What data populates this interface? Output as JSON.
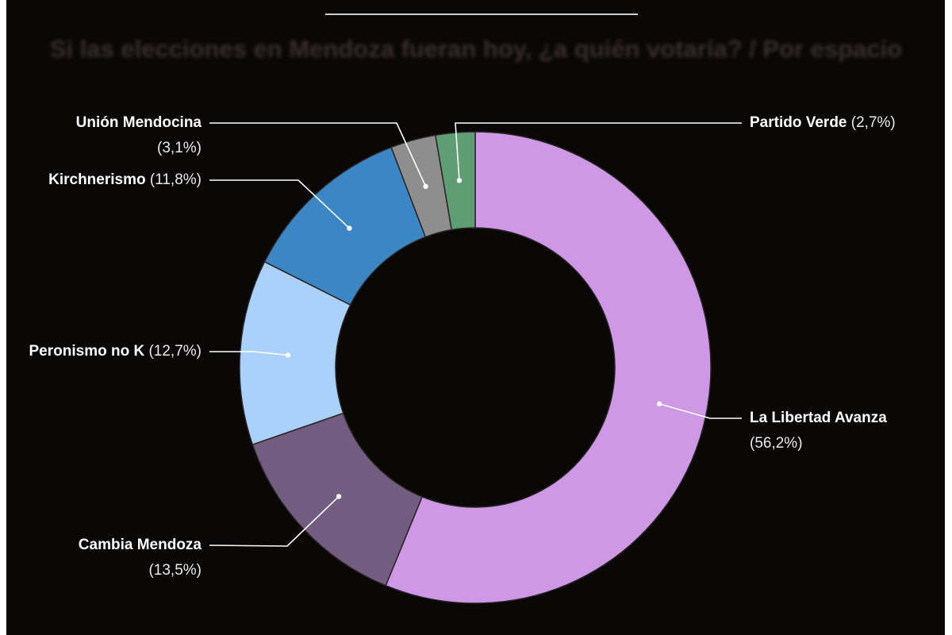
{
  "chart_data": {
    "type": "pie",
    "variant": "donut",
    "title": "Si las elecciones en Mendoza fueran hoy, ¿a quién votaría? / Por espacio",
    "slices": [
      {
        "name": "La Libertad Avanza",
        "value": 56.2,
        "label": "(56,2%)",
        "color": "#cf98e6"
      },
      {
        "name": "Cambia Mendoza",
        "value": 13.5,
        "label": "(13,5%)",
        "color": "#725c80"
      },
      {
        "name": "Peronismo no K",
        "value": 12.7,
        "label": "(12,7%)",
        "color": "#a9d1fb"
      },
      {
        "name": "Kirchnerismo",
        "value": 11.8,
        "label": "(11,8%)",
        "color": "#3b86c4"
      },
      {
        "name": "Unión Mendocina",
        "value": 3.1,
        "label": "(3,1%)",
        "color": "#8e8e8e"
      },
      {
        "name": "Partido Verde",
        "value": 2.7,
        "label": "(2,7%)",
        "color": "#5e9e72"
      }
    ],
    "start": "12 o'clock",
    "direction": "clockwise",
    "legend": "none"
  }
}
